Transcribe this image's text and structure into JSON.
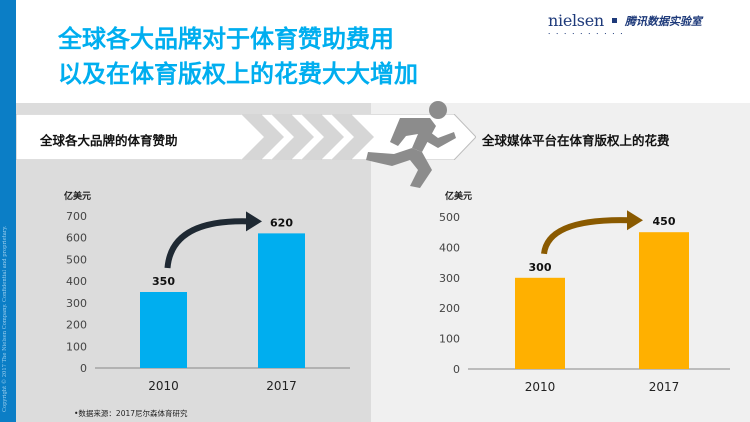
{
  "title": {
    "line1": "全球各大品牌对于体育赞助费用",
    "line2": "以及在体育版权上的花费大大增加"
  },
  "brand": {
    "nielsen": "nielsen",
    "partner": "腾讯数据实验室"
  },
  "copyright": "Copyright © 2017 The Nielsen Company. Confidential and proprietary.",
  "left_section": {
    "label": "全球各大品牌的体育赞助"
  },
  "right_section": {
    "label": "全球媒体平台在体育版权上的花费"
  },
  "source_note": "•数据来源：2017尼尔森体育研究",
  "colors": {
    "title_blue": "#00aeef",
    "left_bar": "#00aeef",
    "right_bar": "#ffb000",
    "left_arrow": "#1f2933",
    "right_arrow": "#8a5a00",
    "stripe": "#0b7ec6"
  },
  "chart_data": [
    {
      "type": "bar",
      "unit": "亿美元",
      "categories": [
        "2010",
        "2017"
      ],
      "values": [
        350,
        620
      ],
      "ylim": [
        0,
        700
      ],
      "yticks": [
        0,
        100,
        200,
        300,
        400,
        500,
        600,
        700
      ],
      "data_labels": [
        "350",
        "620"
      ],
      "bar_color": "#00aeef",
      "arrow_color": "#1f2933"
    },
    {
      "type": "bar",
      "unit": "亿美元",
      "categories": [
        "2010",
        "2017"
      ],
      "values": [
        300,
        450
      ],
      "ylim": [
        0,
        500
      ],
      "yticks": [
        0,
        100,
        200,
        300,
        400,
        500
      ],
      "data_labels": [
        "300",
        "450"
      ],
      "bar_color": "#ffb000",
      "arrow_color": "#8a5a00"
    }
  ]
}
